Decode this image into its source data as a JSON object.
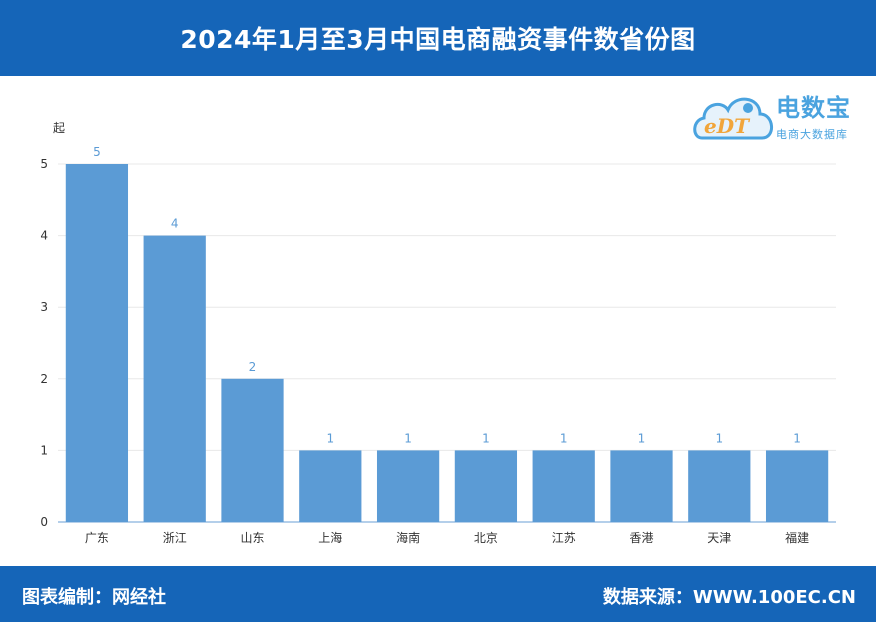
{
  "header": {
    "title": "2024年1月至3月中国电商融资事件数省份图"
  },
  "footer": {
    "compiler": "图表编制：网经社",
    "source": "数据来源：WWW.100EC.CN"
  },
  "logo": {
    "brand": "电数宝",
    "subtitle": "电商大数据库",
    "mark": "eDT"
  },
  "colors": {
    "header_bg": "#1565b8",
    "bar": "#5b9bd5",
    "label": "#5b9bd5"
  },
  "chart_data": {
    "type": "bar",
    "categories": [
      "广东",
      "浙江",
      "山东",
      "上海",
      "海南",
      "北京",
      "江苏",
      "香港",
      "天津",
      "福建"
    ],
    "values": [
      5,
      4,
      2,
      1,
      1,
      1,
      1,
      1,
      1,
      1
    ],
    "ylabel": "起",
    "ylim": [
      0,
      5
    ],
    "yticks": [
      0,
      1,
      2,
      3,
      4,
      5
    ],
    "grid": true,
    "data_labels": true
  }
}
